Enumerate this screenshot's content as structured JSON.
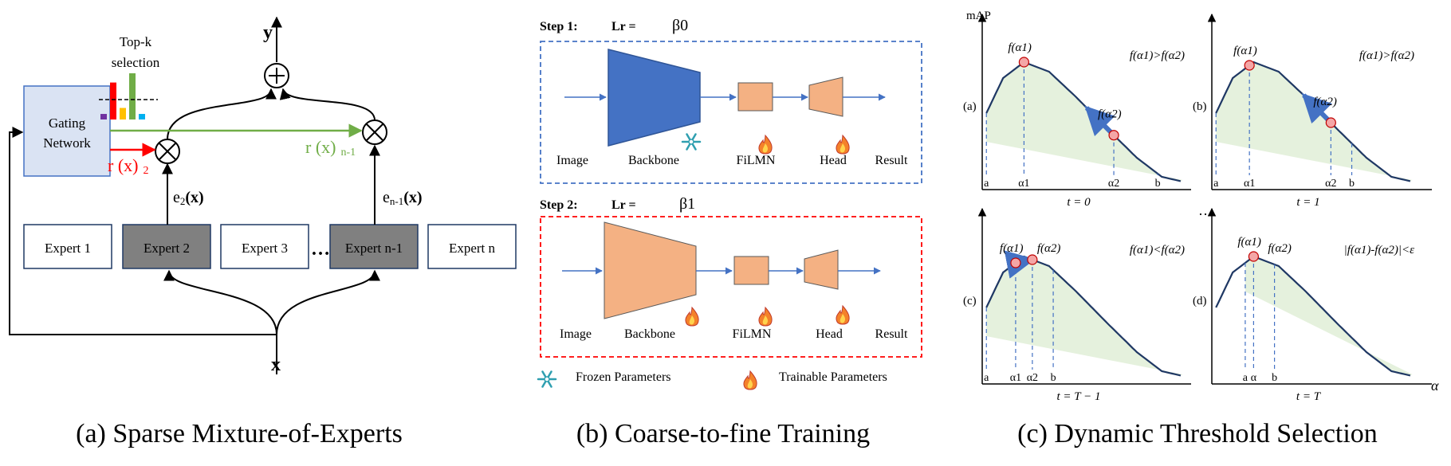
{
  "panel_a": {
    "output_label": "y",
    "input_label": "x",
    "gating_line1": "Gating",
    "gating_line2": "Network",
    "topk_line1": "Top-k",
    "topk_line2": "selection",
    "topk_bars": [
      {
        "color": "#7030a0",
        "value": 0.12
      },
      {
        "color": "#ff0000",
        "value": 0.8
      },
      {
        "color": "#ffc000",
        "value": 0.25
      },
      {
        "color": "#70ad47",
        "value": 1.0
      },
      {
        "color": "#00b0f0",
        "value": 0.12
      }
    ],
    "r2_main": "r (x)",
    "r2_sub": "2",
    "rn_main": "r (x)",
    "rn_sub": "n-1",
    "e2_main": "e",
    "e2_sub": "2",
    "e2_arg": "(x)",
    "en_main": "e",
    "en_sub": "n-1",
    "en_arg": "(x)",
    "experts": [
      "Expert 1",
      "Expert 2",
      "Expert 3",
      "Expert n-1",
      "Expert n"
    ],
    "ellipsis": "…",
    "caption": "(a) Sparse Mixture-of-Experts",
    "colors": {
      "gating_fill": "#dae3f3",
      "selected_expert": "#808080",
      "red": "#ff0000",
      "green": "#70ad47"
    }
  },
  "panel_b": {
    "step1_label": "Step 1:",
    "step1_lr": "Lr =",
    "step1_beta": "β0",
    "step2_label": "Step 2:",
    "step2_lr": "Lr =",
    "step2_beta": "β1",
    "labels": [
      "Image",
      "Backbone",
      "FiLMN",
      "Head",
      "Result"
    ],
    "legend_frozen": "Frozen Parameters",
    "legend_trainable": "Trainable Parameters",
    "caption": "(b) Coarse-to-fine Training",
    "colors": {
      "frozen": "#4472c4",
      "trainable": "#f4b183",
      "step1_border": "#4472c4",
      "step2_border": "#ff0000"
    }
  },
  "panel_c": {
    "ylabel": "mAP",
    "xlabel": "α",
    "ellipsis": "…",
    "subplots": [
      {
        "id": "(a)",
        "time": "t = 0",
        "condition": "f(α1)>f(α2)",
        "ticks": [
          "a",
          "α1",
          "α2",
          "b"
        ],
        "p1": "f(α1)",
        "p2": "f(α2)"
      },
      {
        "id": "(b)",
        "time": "t = 1",
        "condition": "f(α1)>f(α2)",
        "ticks": [
          "a",
          "α1",
          "α2",
          "b"
        ],
        "p1": "f(α1)",
        "p2": "f(α2)"
      },
      {
        "id": "(c)",
        "time": "t = T − 1",
        "condition": "f(α1)<f(α2)",
        "ticks": [
          "a",
          "α1",
          "α2",
          "b"
        ],
        "p1": "f(α1)",
        "p2": "f(α2)"
      },
      {
        "id": "(d)",
        "time": "t = T",
        "condition": "|f(α1)-f(α2)|<ε",
        "ticks": [
          "a",
          "α",
          "b"
        ],
        "p1": "f(α1)",
        "p2": "f(α2)"
      }
    ],
    "caption": "(c) Dynamic Threshold Selection",
    "colors": {
      "curve": "#1f3864",
      "shade": "#e2efd9",
      "marker": "#f4a6a6",
      "arrow": "#4472c4"
    }
  }
}
